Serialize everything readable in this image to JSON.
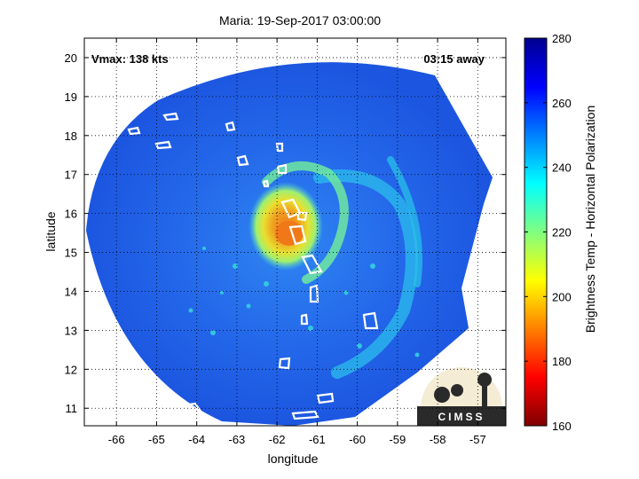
{
  "chart_data": {
    "type": "heatmap",
    "title": "Maria: 19-Sep-2017 03:00:00",
    "xlabel": "longitude",
    "ylabel": "latitude",
    "xlim": [
      -66.8,
      -56.3
    ],
    "ylim": [
      10.55,
      20.5
    ],
    "x_ticks": [
      -66,
      -65,
      -64,
      -63,
      -62,
      -61,
      -60,
      -59,
      -58,
      -57
    ],
    "y_ticks": [
      11,
      12,
      13,
      14,
      15,
      16,
      17,
      18,
      19,
      20
    ],
    "grid": true,
    "center": {
      "lon": -61.6,
      "lat": 15.45
    },
    "annotations": {
      "vmax": "Vmax: 138 kts",
      "time_away": "03:15 away"
    },
    "colorbar": {
      "label": "Brightness Temp - Horizontal Polarization",
      "ticks": [
        160,
        180,
        200,
        220,
        240,
        260,
        280
      ],
      "range": [
        160,
        280
      ],
      "colormap": [
        "#7f0000",
        "#ff0000",
        "#ff8000",
        "#ffff00",
        "#80ff80",
        "#00ffff",
        "#0080ff",
        "#0000ff",
        "#00008f"
      ]
    },
    "logo_text": "CIMSS"
  },
  "colors": {
    "background_cold": "#1a5ae8",
    "swath_mid": "#2a7cf0",
    "band_cyan": "#25c8e8",
    "eye_warm": "#f08a20",
    "eyewall_yellow": "#f0e020"
  }
}
